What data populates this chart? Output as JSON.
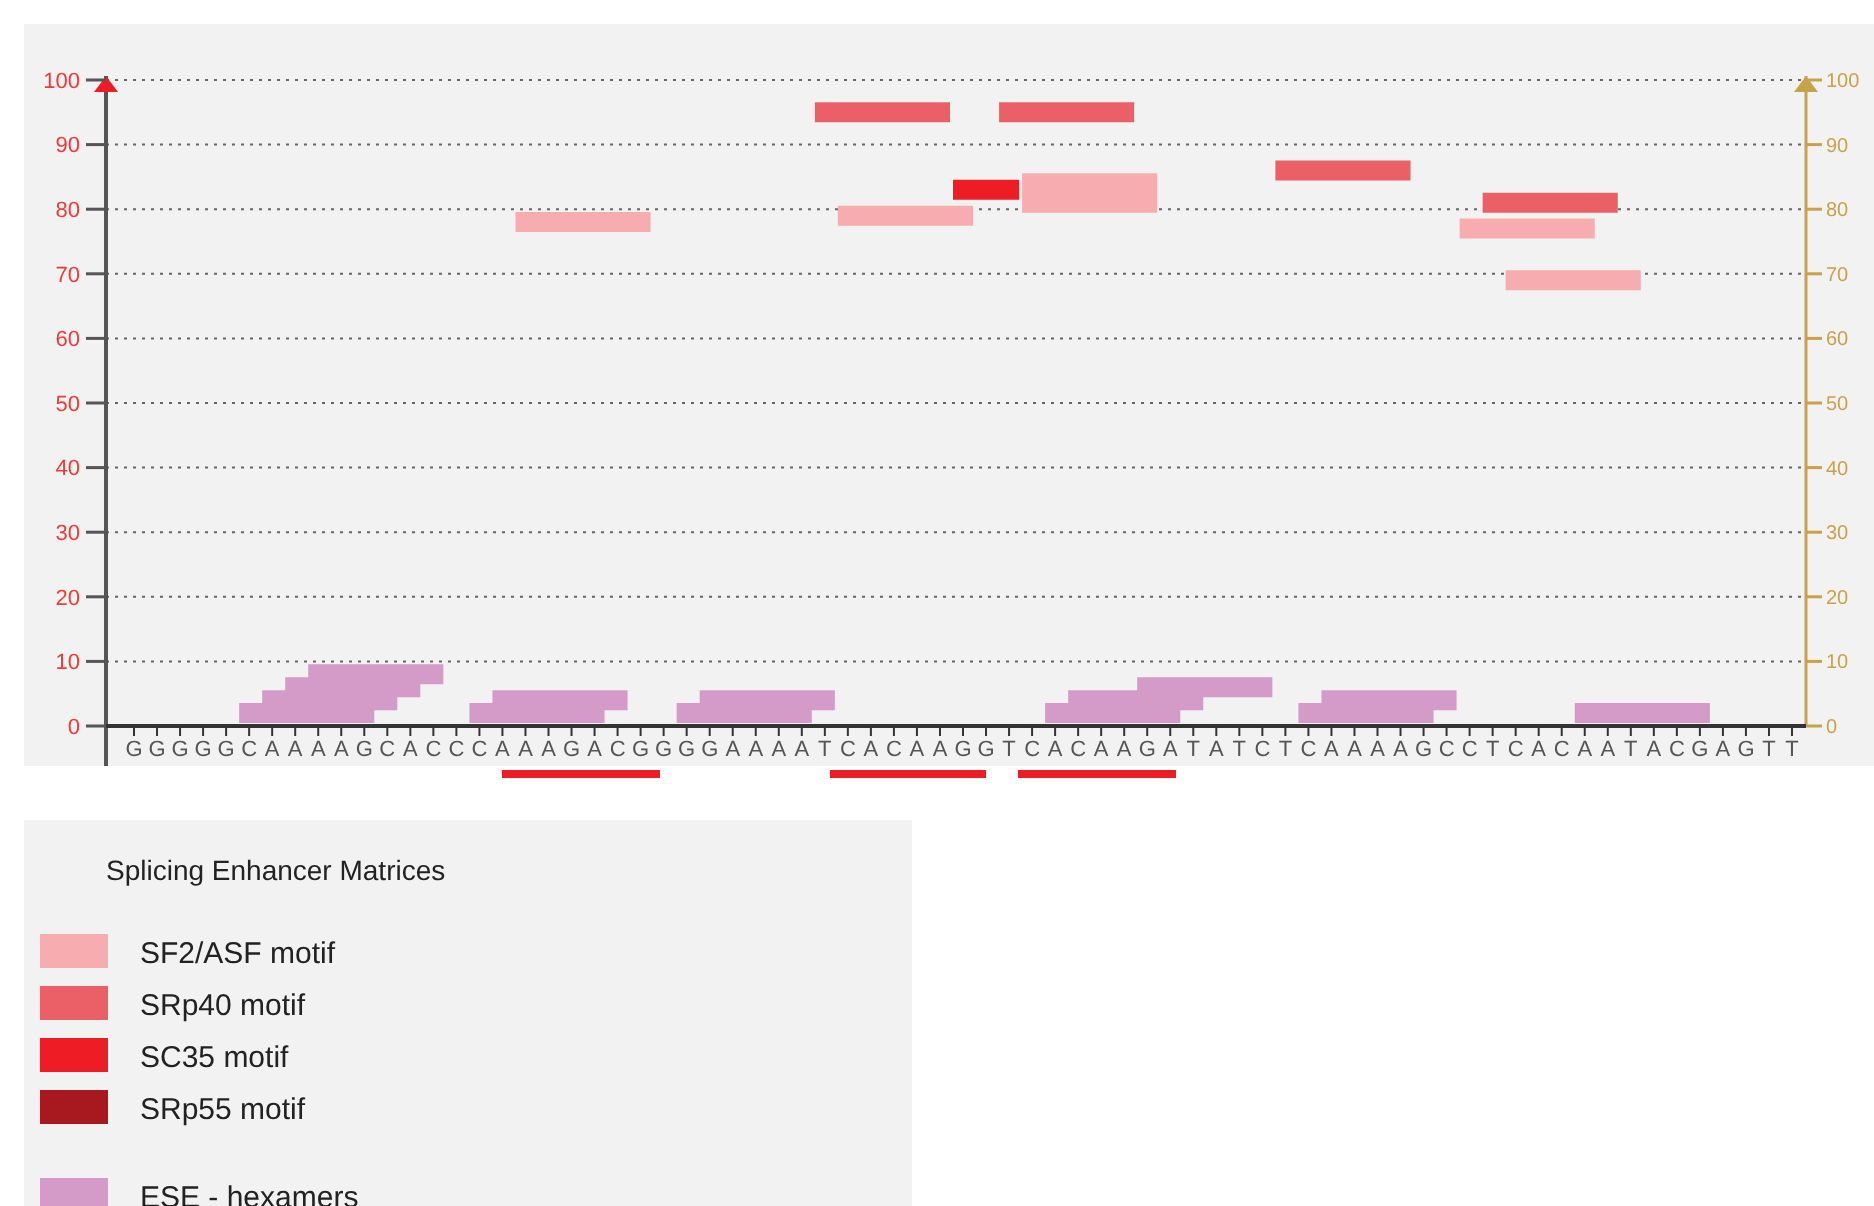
{
  "chart_data": {
    "type": "step",
    "legend_title": "Splicing Enhancer Matrices",
    "legend": "bottom",
    "grid": "y",
    "categories": [
      "G",
      "G",
      "G",
      "G",
      "G",
      "C",
      "A",
      "A",
      "A",
      "A",
      "G",
      "C",
      "A",
      "C",
      "C",
      "C",
      "A",
      "A",
      "A",
      "G",
      "A",
      "C",
      "G",
      "G",
      "G",
      "G",
      "A",
      "A",
      "A",
      "A",
      "T",
      "C",
      "A",
      "C",
      "A",
      "A",
      "G",
      "G",
      "T",
      "C",
      "A",
      "C",
      "A",
      "A",
      "G",
      "A",
      "T",
      "A",
      "T",
      "C",
      "T",
      "C",
      "A",
      "A",
      "A",
      "A",
      "G",
      "C",
      "C",
      "T",
      "C",
      "A",
      "C",
      "A",
      "A",
      "T",
      "A",
      "C",
      "G",
      "A",
      "G",
      "T",
      "T"
    ],
    "ylim": [
      0,
      100
    ],
    "yticks": [
      0,
      10,
      20,
      30,
      40,
      50,
      60,
      70,
      80,
      90,
      100
    ],
    "y2lim": [
      0,
      100
    ],
    "y2ticks": [
      0,
      10,
      20,
      30,
      40,
      50,
      60,
      70,
      80,
      90,
      100
    ],
    "series": [
      {
        "name": "SF2/ASF motif",
        "color": "#f7adb0",
        "values": [
          null,
          null,
          null,
          null,
          null,
          null,
          null,
          null,
          null,
          null,
          null,
          null,
          null,
          null,
          null,
          null,
          null,
          78,
          78,
          78,
          78,
          78,
          78,
          null,
          null,
          null,
          null,
          null,
          null,
          null,
          null,
          79,
          79,
          79,
          79,
          79,
          79,
          null,
          null,
          84,
          84,
          84,
          84,
          84,
          84,
          null,
          null,
          null,
          null,
          null,
          null,
          null,
          null,
          null,
          null,
          null,
          null,
          null,
          77,
          77,
          77,
          77,
          77,
          77,
          null,
          null,
          null,
          null,
          null,
          null,
          null,
          null,
          null
        ]
      },
      {
        "name": "SRp40 motif",
        "color": "#eb5f66",
        "values": [
          null,
          null,
          null,
          null,
          null,
          null,
          null,
          null,
          null,
          null,
          null,
          null,
          null,
          null,
          null,
          null,
          null,
          null,
          null,
          null,
          null,
          null,
          null,
          null,
          null,
          null,
          null,
          null,
          null,
          null,
          95,
          95,
          95,
          95,
          95,
          95,
          null,
          null,
          95,
          95,
          95,
          95,
          95,
          95,
          null,
          null,
          null,
          null,
          null,
          null,
          86,
          86,
          86,
          86,
          86,
          86,
          null,
          null,
          null,
          81,
          81,
          81,
          81,
          81,
          81,
          null,
          null,
          null,
          null,
          null,
          null,
          null,
          null
        ]
      },
      {
        "name": "SC35 motif",
        "color": "#ee1c25",
        "values": [
          null,
          null,
          null,
          null,
          null,
          null,
          null,
          null,
          null,
          null,
          null,
          null,
          null,
          null,
          null,
          null,
          null,
          null,
          null,
          null,
          null,
          null,
          null,
          null,
          null,
          null,
          null,
          null,
          null,
          null,
          null,
          null,
          null,
          null,
          null,
          null,
          83,
          83,
          83,
          null,
          null,
          null,
          null,
          null,
          null,
          null,
          null,
          null,
          null,
          null,
          null,
          null,
          null,
          null,
          null,
          null,
          null,
          null,
          null,
          null,
          null,
          null,
          null,
          null,
          null,
          null,
          null,
          null,
          null,
          null,
          null,
          null,
          null
        ]
      },
      {
        "name": "SRp55 motif",
        "color": "#a8191f",
        "values": [
          null,
          null,
          null,
          null,
          null,
          null,
          null,
          null,
          null,
          null,
          null,
          null,
          null,
          null,
          null,
          null,
          null,
          null,
          null,
          null,
          null,
          null,
          null,
          null,
          null,
          null,
          null,
          null,
          null,
          null,
          null,
          null,
          null,
          null,
          null,
          null,
          null,
          null,
          null,
          null,
          null,
          null,
          null,
          null,
          null,
          null,
          null,
          null,
          null,
          null,
          null,
          null,
          null,
          null,
          null,
          null,
          null,
          null,
          null,
          null,
          null,
          null,
          null,
          null,
          null,
          null,
          null,
          null,
          null,
          null,
          null,
          null,
          null
        ]
      },
      {
        "name": "ESE - hexamers",
        "color": "#d49ac8",
        "values": [
          null,
          null,
          null,
          null,
          null,
          2,
          2,
          2,
          2,
          2,
          2,
          null,
          null,
          null,
          null,
          2,
          2,
          2,
          2,
          2,
          2,
          null,
          null,
          null,
          2,
          2,
          2,
          2,
          2,
          2,
          null,
          null,
          null,
          null,
          null,
          null,
          null,
          null,
          null,
          null,
          2,
          2,
          2,
          2,
          2,
          2,
          null,
          null,
          null,
          null,
          null,
          2,
          2,
          2,
          2,
          2,
          2,
          null,
          null,
          null,
          null,
          null,
          null,
          2,
          2,
          2,
          2,
          2,
          2,
          null,
          null,
          null,
          null
        ]
      },
      {
        "color": "#f7adb0",
        "values": [
          null,
          null,
          null,
          null,
          null,
          null,
          null,
          null,
          null,
          null,
          null,
          null,
          null,
          null,
          null,
          null,
          null,
          null,
          null,
          null,
          null,
          null,
          null,
          null,
          null,
          null,
          null,
          null,
          null,
          null,
          null,
          null,
          null,
          null,
          null,
          null,
          null,
          null,
          null,
          81,
          81,
          81,
          81,
          81,
          81,
          null,
          null,
          null,
          null,
          null,
          null,
          null,
          null,
          null,
          null,
          null,
          null,
          null,
          null,
          null,
          69,
          69,
          69,
          69,
          69,
          69,
          null,
          null,
          null,
          null,
          null,
          null,
          null
        ]
      },
      {
        "color": "#d49ac8",
        "values": [
          null,
          null,
          null,
          null,
          null,
          null,
          4,
          4,
          4,
          4,
          4,
          4,
          null,
          null,
          null,
          null,
          4,
          4,
          4,
          4,
          4,
          4,
          null,
          null,
          null,
          4,
          4,
          4,
          4,
          4,
          4,
          null,
          null,
          null,
          null,
          null,
          null,
          null,
          null,
          null,
          null,
          4,
          4,
          4,
          4,
          4,
          4,
          null,
          null,
          null,
          null,
          null,
          4,
          4,
          4,
          4,
          4,
          4,
          null,
          null,
          null,
          null,
          null,
          null,
          null,
          null,
          null,
          null,
          null,
          null,
          null,
          null,
          null
        ]
      },
      {
        "color": "#d49ac8",
        "values": [
          null,
          null,
          null,
          null,
          null,
          null,
          null,
          6,
          6,
          6,
          6,
          6,
          6,
          null,
          null,
          null,
          null,
          null,
          null,
          null,
          null,
          null,
          null,
          null,
          null,
          null,
          null,
          null,
          null,
          null,
          null,
          null,
          null,
          null,
          null,
          null,
          null,
          null,
          null,
          null,
          null,
          null,
          null,
          null,
          6,
          6,
          6,
          6,
          6,
          6,
          null,
          null,
          null,
          null,
          null,
          null,
          null,
          null,
          null,
          null,
          null,
          null,
          null,
          null,
          null,
          null,
          null,
          null,
          null,
          null,
          null,
          null,
          null
        ]
      },
      {
        "color": "#d49ac8",
        "values": [
          null,
          null,
          null,
          null,
          null,
          null,
          null,
          null,
          8,
          8,
          8,
          8,
          8,
          8,
          null,
          null,
          null,
          null,
          null,
          null,
          null,
          null,
          null,
          null,
          null,
          null,
          null,
          null,
          null,
          null,
          null,
          null,
          null,
          null,
          null,
          null,
          null,
          null,
          null,
          null,
          null,
          null,
          null,
          null,
          null,
          null,
          null,
          null,
          null,
          null,
          null,
          null,
          null,
          null,
          null,
          null,
          null,
          null,
          null,
          null,
          null,
          null,
          null,
          null,
          null,
          null,
          null,
          null,
          null,
          null,
          null,
          null,
          null
        ]
      }
    ]
  }
}
